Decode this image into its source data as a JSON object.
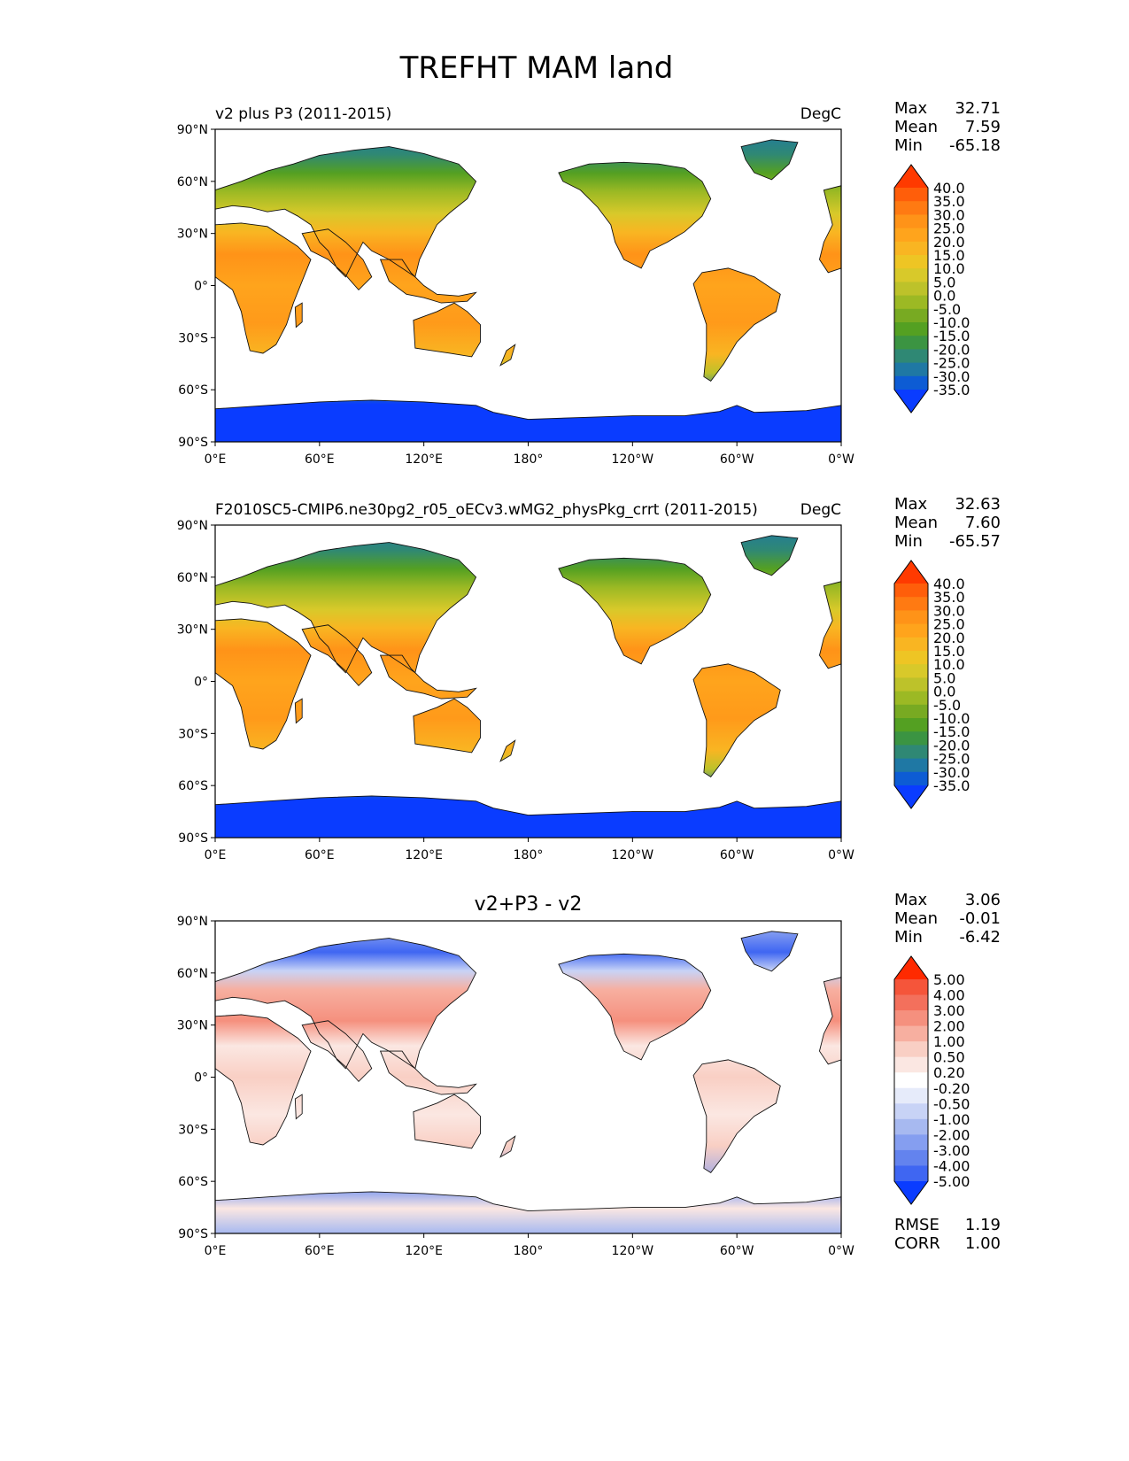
{
  "figure": {
    "title": "TREFHT MAM land"
  },
  "chart_data": [
    {
      "type": "heatmap",
      "panel": "test",
      "title": "",
      "left_title": "v2 plus P3 (2011-2015)",
      "units": "DegC",
      "stats": [
        {
          "label": "Max",
          "value": "32.71"
        },
        {
          "label": "Mean",
          "value": "7.59"
        },
        {
          "label": "Min",
          "value": "-65.18"
        }
      ],
      "lat_ticks": [
        "90°N",
        "60°N",
        "30°N",
        "0°",
        "30°S",
        "60°S",
        "90°S"
      ],
      "lon_ticks": [
        "0°E",
        "60°E",
        "120°E",
        "180°",
        "120°W",
        "60°W",
        "0°W"
      ],
      "colorbar": {
        "labels": [
          "40.0",
          "35.0",
          "30.0",
          "25.0",
          "20.0",
          "15.0",
          "10.0",
          "5.0",
          "0.0",
          "-5.0",
          "-10.0",
          "-15.0",
          "-20.0",
          "-25.0",
          "-30.0",
          "-35.0"
        ],
        "colors": [
          "#ff3a00",
          "#ff5e0a",
          "#ff7a12",
          "#ff9318",
          "#ffa41c",
          "#f9b522",
          "#eec524",
          "#d8c92a",
          "#bdc22a",
          "#9cb924",
          "#78aa22",
          "#54a022",
          "#3b9442",
          "#2f8874",
          "#1f78a4",
          "#0d5cd4",
          "#0a3cff"
        ]
      },
      "field": "absolute",
      "lat_range": [
        -90,
        90
      ],
      "lon_range": [
        0,
        360
      ]
    },
    {
      "type": "heatmap",
      "panel": "reference",
      "title": "",
      "left_title": "F2010SC5-CMIP6.ne30pg2_r05_oECv3.wMG2_physPkg_crrt (2011-2015)",
      "units": "DegC",
      "stats": [
        {
          "label": "Max",
          "value": "32.63"
        },
        {
          "label": "Mean",
          "value": "7.60"
        },
        {
          "label": "Min",
          "value": "-65.57"
        }
      ],
      "lat_ticks": [
        "90°N",
        "60°N",
        "30°N",
        "0°",
        "30°S",
        "60°S",
        "90°S"
      ],
      "lon_ticks": [
        "0°E",
        "60°E",
        "120°E",
        "180°",
        "120°W",
        "60°W",
        "0°W"
      ],
      "colorbar": {
        "labels": [
          "40.0",
          "35.0",
          "30.0",
          "25.0",
          "20.0",
          "15.0",
          "10.0",
          "5.0",
          "0.0",
          "-5.0",
          "-10.0",
          "-15.0",
          "-20.0",
          "-25.0",
          "-30.0",
          "-35.0"
        ],
        "colors": [
          "#ff3a00",
          "#ff5e0a",
          "#ff7a12",
          "#ff9318",
          "#ffa41c",
          "#f9b522",
          "#eec524",
          "#d8c92a",
          "#bdc22a",
          "#9cb924",
          "#78aa22",
          "#54a022",
          "#3b9442",
          "#2f8874",
          "#1f78a4",
          "#0d5cd4",
          "#0a3cff"
        ]
      },
      "field": "absolute",
      "lat_range": [
        -90,
        90
      ],
      "lon_range": [
        0,
        360
      ]
    },
    {
      "type": "heatmap",
      "panel": "difference",
      "title": "v2+P3 - v2",
      "left_title": "",
      "units": "",
      "stats": [
        {
          "label": "Max",
          "value": "3.06"
        },
        {
          "label": "Mean",
          "value": "-0.01"
        },
        {
          "label": "Min",
          "value": "-6.42"
        }
      ],
      "extra_stats": [
        {
          "label": "RMSE",
          "value": "1.19"
        },
        {
          "label": "CORR",
          "value": "1.00"
        }
      ],
      "lat_ticks": [
        "90°N",
        "60°N",
        "30°N",
        "0°",
        "30°S",
        "60°S",
        "90°S"
      ],
      "lon_ticks": [
        "0°E",
        "60°E",
        "120°E",
        "180°",
        "120°W",
        "60°W",
        "0°W"
      ],
      "colorbar": {
        "labels": [
          "5.00",
          "4.00",
          "3.00",
          "2.00",
          "1.00",
          "0.50",
          "0.20",
          "-0.20",
          "-0.50",
          "-1.00",
          "-2.00",
          "-3.00",
          "-4.00",
          "-5.00"
        ],
        "colors": [
          "#ff2a00",
          "#f5553a",
          "#f3705c",
          "#f5907e",
          "#f7afa0",
          "#f9cfc4",
          "#fbe7e2",
          "#ffffff",
          "#e6ebfa",
          "#c8d3f6",
          "#a7b9f0",
          "#859ef0",
          "#6383ee",
          "#3f66f2",
          "#0a3cff"
        ]
      },
      "field": "difference",
      "lat_range": [
        -90,
        90
      ],
      "lon_range": [
        0,
        360
      ]
    }
  ]
}
